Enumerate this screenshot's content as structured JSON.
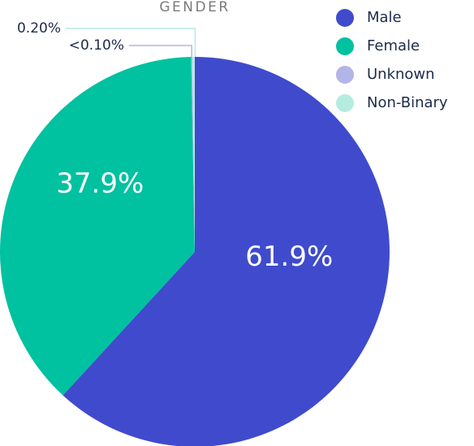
{
  "chart_data": {
    "type": "pie",
    "title": "GENDER",
    "categories": [
      "Male",
      "Female",
      "Unknown",
      "Non-Binary"
    ],
    "values": [
      61.9,
      37.9,
      0.1,
      0.2
    ],
    "value_labels": [
      "61.9%",
      "37.9%",
      "<0.10%",
      "0.20%"
    ],
    "colors": [
      "#3f4bcc",
      "#00c1a0",
      "#b3b5e8",
      "#b5ece0"
    ],
    "legend": "top-right"
  }
}
